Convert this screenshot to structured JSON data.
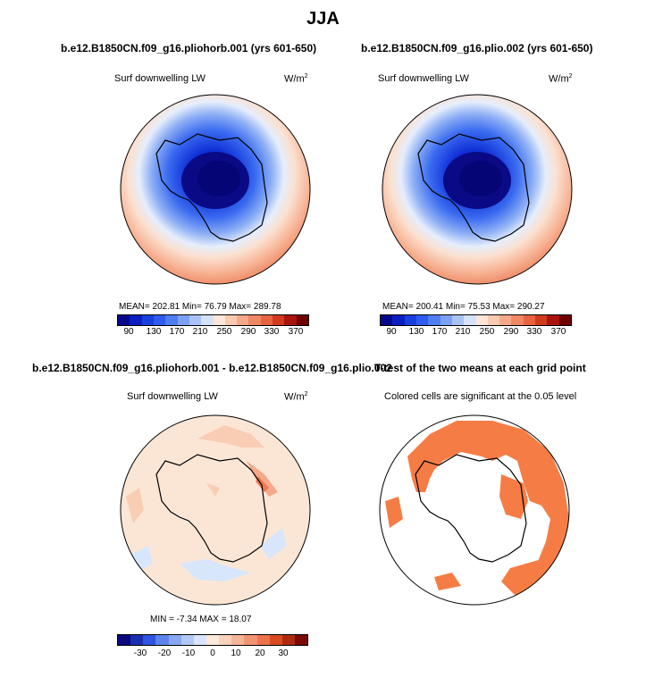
{
  "title": "JJA",
  "panels": [
    {
      "id": "p1",
      "case_title": "b.e12.B1850CN.f09_g16.pliohorb.001 (yrs 601-650)",
      "variable": "Surf downwelling LW",
      "units_base": "W/m",
      "units_exp": "2",
      "stats_text": "MEAN= 202.81   Min=   76.79   Max= 289.78",
      "colorbar_ticks": [
        "90",
        "130",
        "170",
        "210",
        "250",
        "290",
        "330",
        "370"
      ]
    },
    {
      "id": "p2",
      "case_title": "b.e12.B1850CN.f09_g16.plio.002 (yrs 601-650)",
      "variable": "Surf downwelling LW",
      "units_base": "W/m",
      "units_exp": "2",
      "stats_text": "MEAN= 200.41   Min=   75.53   Max= 290.27",
      "colorbar_ticks": [
        "90",
        "130",
        "170",
        "210",
        "250",
        "290",
        "330",
        "370"
      ]
    },
    {
      "id": "p3",
      "case_title": "b.e12.B1850CN.f09_g16.pliohorb.001 - b.e12.B1850CN.f09_g16.plio.002",
      "variable": "Surf downwelling LW",
      "units_base": "W/m",
      "units_exp": "2",
      "stats_text": "MIN =  -7.34  MAX =  18.07",
      "colorbar_ticks": [
        "-30",
        "-20",
        "-10",
        "0",
        "10",
        "20",
        "30"
      ]
    },
    {
      "id": "p4",
      "case_title": "T-test of the two means at each grid point",
      "subtitle": "Colored cells are significant at the 0.05 level"
    }
  ],
  "colors": {
    "abs_scale": [
      "#08088c",
      "#0a1fc0",
      "#1a3fe0",
      "#2f5bef",
      "#4f7df2",
      "#7ca0f4",
      "#a9c3f6",
      "#d4e2fa",
      "#fde6d9",
      "#f9c9b0",
      "#f5a98a",
      "#f08864",
      "#e8633f",
      "#d23a20",
      "#a9140b",
      "#700000"
    ],
    "diff_scale": [
      "#0a0a80",
      "#1a2fb0",
      "#2e54e0",
      "#5c82ee",
      "#8aa8f2",
      "#b4c8f6",
      "#dae6fb",
      "#fbe9dc",
      "#f9d2bc",
      "#f5b597",
      "#f19472",
      "#ec7247",
      "#d94a22",
      "#b02a0f",
      "#7a0a05"
    ],
    "significance": "#f57d45",
    "coastline": "#000000"
  }
}
